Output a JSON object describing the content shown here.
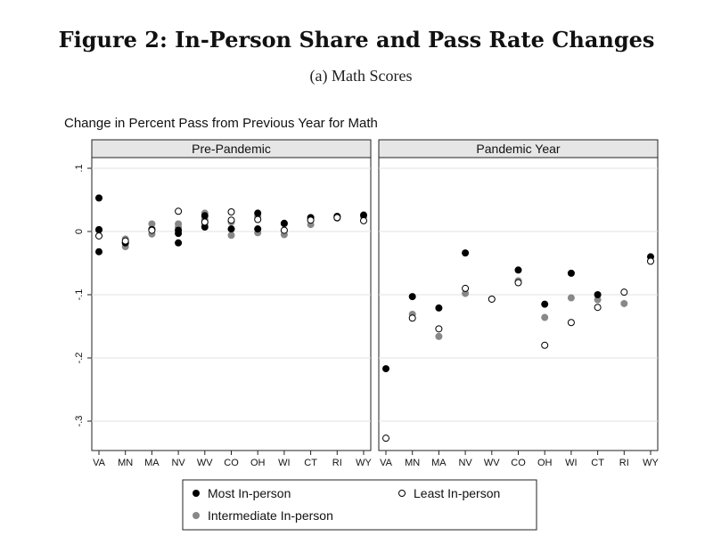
{
  "figure": {
    "title": "Figure 2: In-Person Share and Pass Rate Changes",
    "subtitle": "(a) Math Scores"
  },
  "chart_data": {
    "type": "scatter",
    "title": "Change in Percent Pass from Previous Year for Math",
    "ylim": [
      -0.35,
      0.1
    ],
    "yticks": [
      0.1,
      0,
      -0.1,
      -0.2,
      -0.3
    ],
    "ytick_labels": [
      ".1",
      "0",
      "-.1",
      "-.2",
      "-.3"
    ],
    "grid": "horizontal",
    "categories": [
      "VA",
      "MN",
      "MA",
      "NV",
      "WV",
      "CO",
      "OH",
      "WI",
      "CT",
      "RI",
      "WY"
    ],
    "panels": [
      {
        "name": "Pre-Pandemic",
        "series": [
          {
            "name": "Most In-person",
            "points": [
              [
                "VA",
                0.053
              ],
              [
                "VA",
                0.003
              ],
              [
                "VA",
                -0.032
              ],
              [
                "MN",
                -0.018
              ],
              [
                "MA",
                0.003
              ],
              [
                "NV",
                0.002
              ],
              [
                "NV",
                -0.003
              ],
              [
                "NV",
                -0.018
              ],
              [
                "WV",
                0.025
              ],
              [
                "WV",
                0.007
              ],
              [
                "CO",
                0.004
              ],
              [
                "OH",
                0.029
              ],
              [
                "OH",
                0.004
              ],
              [
                "WI",
                0.013
              ],
              [
                "CT",
                0.022
              ],
              [
                "RI",
                0.024
              ],
              [
                "WY",
                0.026
              ]
            ]
          },
          {
            "name": "Intermediate In-person",
            "points": [
              [
                "VA",
                0.002
              ],
              [
                "MN",
                -0.012
              ],
              [
                "MN",
                -0.018
              ],
              [
                "MN",
                -0.024
              ],
              [
                "MA",
                0.012
              ],
              [
                "MA",
                0.004
              ],
              [
                "MA",
                -0.004
              ],
              [
                "NV",
                0.012
              ],
              [
                "NV",
                0.007
              ],
              [
                "WV",
                0.029
              ],
              [
                "WV",
                0.019
              ],
              [
                "WV",
                0.012
              ],
              [
                "CO",
                0.015
              ],
              [
                "CO",
                0.004
              ],
              [
                "CO",
                -0.006
              ],
              [
                "OH",
                0.024
              ],
              [
                "OH",
                0.004
              ],
              [
                "OH",
                -0.002
              ],
              [
                "WI",
                0.012
              ],
              [
                "WI",
                0.001
              ],
              [
                "WI",
                -0.005
              ],
              [
                "CT",
                0.019
              ],
              [
                "CT",
                0.011
              ],
              [
                "RI",
                0.023
              ],
              [
                "RI",
                0.021
              ],
              [
                "WY",
                0.023
              ]
            ]
          },
          {
            "name": "Least In-person",
            "points": [
              [
                "VA",
                -0.007
              ],
              [
                "MN",
                -0.015
              ],
              [
                "MA",
                0.002
              ],
              [
                "NV",
                0.032
              ],
              [
                "WV",
                0.015
              ],
              [
                "CO",
                0.031
              ],
              [
                "CO",
                0.018
              ],
              [
                "OH",
                0.019
              ],
              [
                "WI",
                0.002
              ],
              [
                "CT",
                0.018
              ],
              [
                "RI",
                0.022
              ],
              [
                "WY",
                0.017
              ]
            ]
          }
        ]
      },
      {
        "name": "Pandemic Year",
        "series": [
          {
            "name": "Most In-person",
            "points": [
              [
                "VA",
                -0.217
              ],
              [
                "MN",
                -0.103
              ],
              [
                "MA",
                -0.121
              ],
              [
                "NV",
                -0.034
              ],
              [
                "CO",
                -0.061
              ],
              [
                "OH",
                -0.115
              ],
              [
                "WI",
                -0.066
              ],
              [
                "CT",
                -0.1
              ],
              [
                "WY",
                -0.04
              ]
            ]
          },
          {
            "name": "Intermediate In-person",
            "points": [
              [
                "MN",
                -0.131
              ],
              [
                "MA",
                -0.166
              ],
              [
                "NV",
                -0.098
              ],
              [
                "WV",
                -0.107
              ],
              [
                "CO",
                -0.078
              ],
              [
                "OH",
                -0.136
              ],
              [
                "WI",
                -0.105
              ],
              [
                "CT",
                -0.108
              ],
              [
                "RI",
                -0.114
              ]
            ]
          },
          {
            "name": "Least In-person",
            "points": [
              [
                "VA",
                -0.327
              ],
              [
                "MN",
                -0.137
              ],
              [
                "MA",
                -0.154
              ],
              [
                "NV",
                -0.09
              ],
              [
                "WV",
                -0.107
              ],
              [
                "CO",
                -0.081
              ],
              [
                "OH",
                -0.18
              ],
              [
                "WI",
                -0.144
              ],
              [
                "CT",
                -0.12
              ],
              [
                "RI",
                -0.096
              ],
              [
                "WY",
                -0.047
              ]
            ]
          }
        ]
      }
    ],
    "legend": {
      "placement": "bottom",
      "entries": [
        "Most In-person",
        "Least In-person",
        "Intermediate In-person"
      ]
    },
    "colors": {
      "most": "#000000",
      "intermediate": "#888888",
      "least_fill": "#ffffff",
      "least_stroke": "#000000",
      "strip_fill": "#e6e6e6",
      "grid": "#e2e2e2"
    }
  }
}
